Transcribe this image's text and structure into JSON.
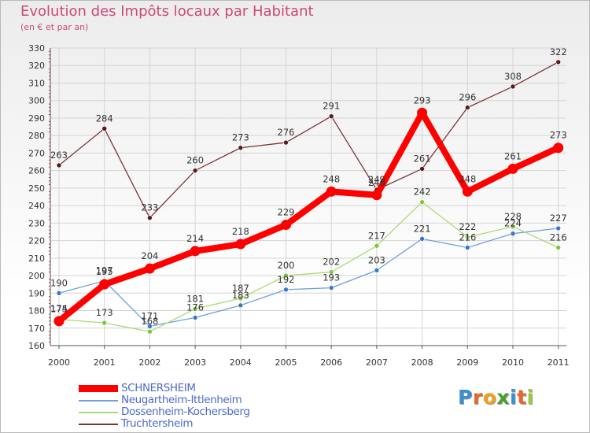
{
  "title": "Evolution des Impôts locaux par Habitant",
  "subtitle": "(en € et par an)",
  "brand": {
    "text": "Proxiti",
    "letters": [
      "P",
      "r",
      "o",
      "x",
      "i",
      "t",
      "i"
    ],
    "letter_colors": [
      "#3a8fd2",
      "#e8672a",
      "#f0a21e",
      "#4aa02c",
      "#3a8fd2",
      "#e8672a",
      "#9ac93b"
    ]
  },
  "chart_data": {
    "type": "line",
    "x": [
      "2000",
      "2001",
      "2002",
      "2003",
      "2004",
      "2005",
      "2006",
      "2007",
      "2008",
      "2009",
      "2010",
      "2011"
    ],
    "ylim": [
      160,
      330
    ],
    "yticks": [
      160,
      170,
      180,
      190,
      200,
      210,
      220,
      230,
      240,
      250,
      260,
      270,
      280,
      290,
      300,
      310,
      320,
      330
    ],
    "grid": true,
    "legend_position": "bottom-left",
    "series": [
      {
        "name": "SCHNERSHEIM",
        "values": [
          174,
          195,
          204,
          214,
          218,
          229,
          248,
          246,
          293,
          248,
          261,
          273
        ],
        "color": "#ff0000",
        "style": "bold"
      },
      {
        "name": "Neugartheim-Ittlenheim",
        "values": [
          190,
          197,
          171,
          176,
          183,
          192,
          193,
          203,
          221,
          216,
          224,
          227
        ],
        "color": "#6fa0d8",
        "marker": "#3a78c8"
      },
      {
        "name": "Dossenheim-Kochersberg",
        "values": [
          175,
          173,
          168,
          181,
          187,
          200,
          202,
          217,
          242,
          222,
          228,
          216
        ],
        "color": "#a8db73",
        "marker": "#7fc640"
      },
      {
        "name": "Truchtersheim",
        "values": [
          263,
          284,
          233,
          260,
          273,
          276,
          291,
          249,
          261,
          296,
          308,
          322
        ],
        "color": "#7a3638",
        "marker": "#5a1a1c"
      }
    ]
  }
}
